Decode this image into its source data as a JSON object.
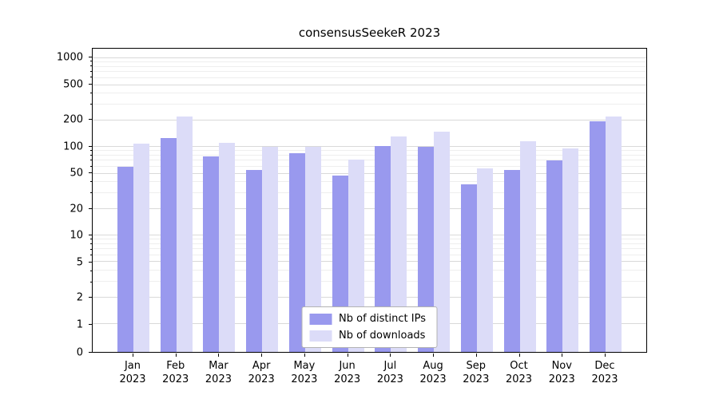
{
  "chart_data": {
    "type": "bar",
    "title": "consensusSeekeR 2023",
    "scale": "symlog",
    "grid": true,
    "legend_position": "lower center",
    "categories": [
      "Jan",
      "Feb",
      "Mar",
      "Apr",
      "May",
      "Jun",
      "Jul",
      "Aug",
      "Sep",
      "Oct",
      "Nov",
      "Dec"
    ],
    "year_label": "2023",
    "series": [
      {
        "name": "Nb of distinct IPs",
        "color": "#9999ee",
        "values": [
          60,
          125,
          78,
          55,
          85,
          48,
          103,
          100,
          38,
          55,
          70,
          195
        ]
      },
      {
        "name": "Nb of downloads",
        "color": "#dcdcf8",
        "values": [
          110,
          220,
          112,
          100,
          100,
          72,
          130,
          150,
          57,
          115,
          97,
          220
        ]
      }
    ],
    "yticks": [
      0,
      1,
      2,
      5,
      10,
      20,
      50,
      100,
      200,
      500,
      1000
    ],
    "ylim": [
      0,
      1000
    ],
    "xlabel": "",
    "ylabel": ""
  },
  "colors": {
    "grid_major": "#d9d9d9",
    "grid_minor": "#eeeeee",
    "axis": "#000000",
    "background": "#ffffff"
  }
}
